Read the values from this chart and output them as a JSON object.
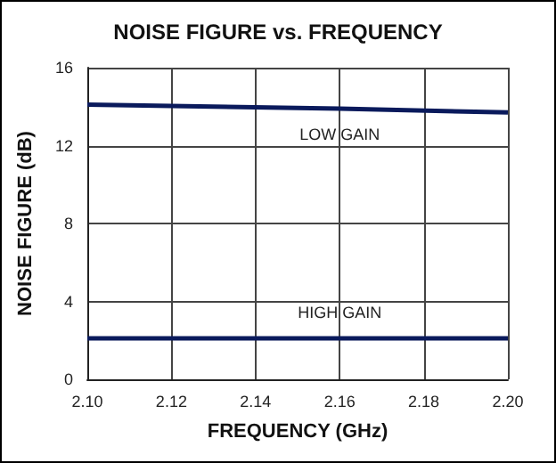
{
  "chart_data": {
    "type": "line",
    "title": "NOISE FIGURE vs. FREQUENCY",
    "xlabel": "FREQUENCY (GHz)",
    "ylabel": "NOISE FIGURE (dB)",
    "series": [
      {
        "name": "LOW GAIN",
        "color": "#0a1a5c",
        "x": [
          2.1,
          2.13,
          2.16,
          2.2
        ],
        "values": [
          14.1,
          14.0,
          13.9,
          13.7
        ]
      },
      {
        "name": "HIGH GAIN",
        "color": "#0a1a5c",
        "x": [
          2.1,
          2.16,
          2.2
        ],
        "values": [
          2.1,
          2.1,
          2.1
        ]
      }
    ],
    "xlim": [
      2.1,
      2.2
    ],
    "xticks": [
      {
        "value": 2.1,
        "label": "2.10"
      },
      {
        "value": 2.12,
        "label": "2.12"
      },
      {
        "value": 2.14,
        "label": "2.14"
      },
      {
        "value": 2.16,
        "label": "2.16"
      },
      {
        "value": 2.18,
        "label": "2.18"
      },
      {
        "value": 2.2,
        "label": "2.20"
      }
    ],
    "ylim": [
      0,
      16
    ],
    "yticks": [
      0,
      4,
      8,
      12,
      16
    ],
    "grid": true,
    "marker": "none",
    "line_style": "solid",
    "legend": false
  }
}
